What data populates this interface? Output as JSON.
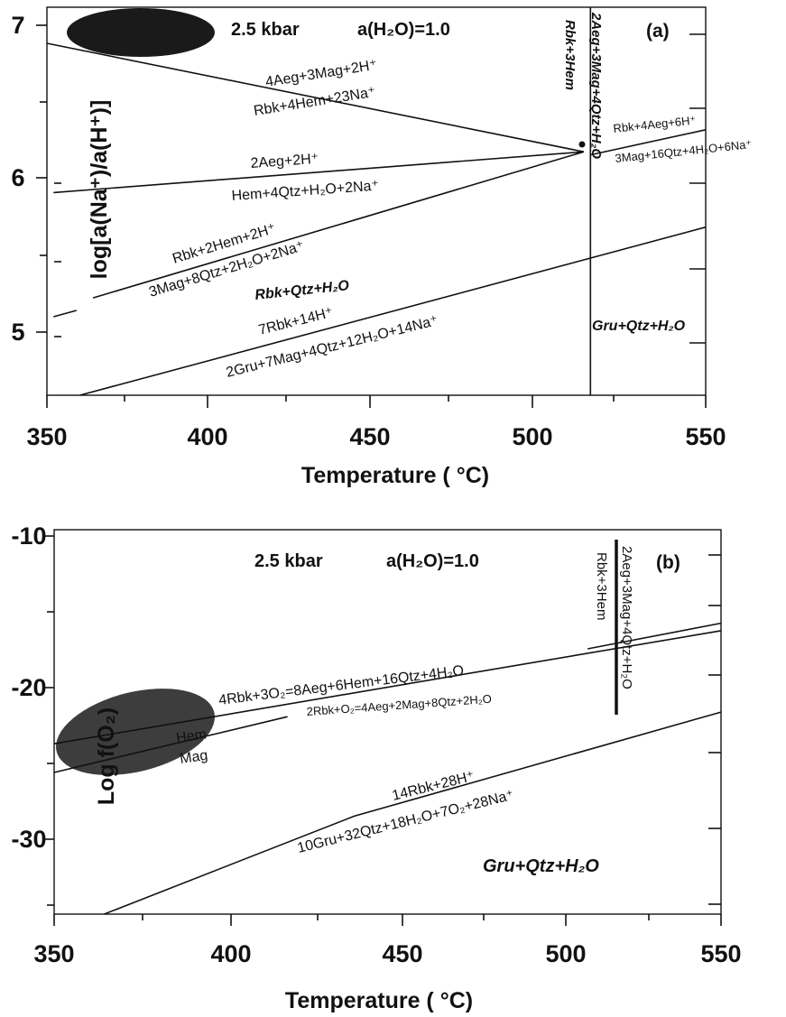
{
  "chart_data": [
    {
      "panel_label": "(a)",
      "type": "line",
      "header": {
        "pressure": "2.5 kbar",
        "water_activity": "a(H₂O)=1.0"
      },
      "xlabel": "Temperature ( °C)",
      "ylabel": "log[a(Na⁺)/a(H⁺)]",
      "xlim": [
        350,
        550
      ],
      "ylim": [
        4.63,
        7.1
      ],
      "x_ticks": [
        "350",
        "400",
        "450",
        "500",
        "550"
      ],
      "y_ticks": [
        "5",
        "6",
        "7"
      ],
      "shaded_region": {
        "center": [
          375,
          6.93
        ],
        "rx": 22,
        "ry": 0.16,
        "color": "#1a1a1a"
      },
      "series": [
        {
          "points": [
            [
              350,
              6.87
            ],
            [
              513,
              6.18
            ]
          ],
          "labels": [
            "4Aeg+3Mag+2H⁺",
            "Rbk+4Hem+23Na⁺"
          ]
        },
        {
          "points": [
            [
              352,
              5.92
            ],
            [
              513,
              6.18
            ]
          ],
          "labels": [
            "2Aeg+2H⁺",
            "Hem+4Qtz+H₂O+2Na⁺"
          ]
        },
        {
          "points": [
            [
              352,
              5.13
            ],
            [
              359,
              5.17
            ]
          ]
        },
        {
          "points": [
            [
              364,
              5.25
            ],
            [
              513,
              6.18
            ]
          ],
          "labels": [
            "Rbk+2Hem+2H⁺",
            "3Mag+8Qtz+2H₂O+2Na⁺"
          ]
        },
        {
          "points": [
            [
              360,
              4.63
            ],
            [
              550,
              5.7
            ]
          ],
          "labels": [
            "7Rbk+14H⁺",
            "2Gru+7Mag+4Qtz+12H₂O+14Na⁺"
          ]
        },
        {
          "points": [
            [
              515,
              6.16
            ],
            [
              550,
              6.32
            ]
          ],
          "labels": [
            "Rbk+4Aeg+6H⁺",
            "3Mag+16Qtz+4H₂O+6Na⁺"
          ]
        },
        {
          "points": [
            [
              515,
              4.63
            ],
            [
              515,
              7.1
            ]
          ],
          "labels": [
            "Rbk+3Hem",
            "2Aeg+3Mag+4Qtz+H₂O"
          ]
        }
      ],
      "fields": [
        "Rbk+Qtz+H₂O",
        "Gru+Qtz+H₂O"
      ]
    },
    {
      "panel_label": "(b)",
      "type": "line",
      "header": {
        "pressure": "2.5 kbar",
        "water_activity": "a(H₂O)=1.0"
      },
      "xlabel": "Temperature ( °C)",
      "ylabel": "Log f(O₂)",
      "xlim": [
        350,
        550
      ],
      "ylim": [
        -35.5,
        -10
      ],
      "x_ticks": [
        "350",
        "400",
        "450",
        "500",
        "550"
      ],
      "y_ticks": [
        "-10",
        "-20",
        "-30"
      ],
      "shaded_region": {
        "center": [
          375,
          -24.2
        ],
        "rx": 24,
        "ry": 2.6,
        "color": "#3d3d3d"
      },
      "series": [
        {
          "points": [
            [
              350,
              -24.2
            ],
            [
              550,
              -16.7
            ]
          ],
          "labels": [
            "4Rbk+3O₂=8Aeg+6Hem+16Qtz+4H₂O"
          ]
        },
        {
          "points": [
            [
              350,
              -26.1
            ],
            [
              420,
              -22.4
            ]
          ],
          "labels": [
            "Hem",
            "Mag"
          ]
        },
        {
          "points": [
            [
              510,
              -17.9
            ],
            [
              550,
              -16.2
            ]
          ],
          "labels": [
            "2Rbk+O₂=4Aeg+2Mag+8Qtz+2H₂O"
          ]
        },
        {
          "points": [
            [
              365,
              -35.5
            ],
            [
              440,
              -29.0
            ],
            [
              550,
              -22.1
            ]
          ],
          "labels": [
            "14Rbk+28H⁺",
            "10Gru+32Qtz+18H₂O+7O₂+28Na⁺"
          ]
        },
        {
          "points": [
            [
              515,
              -10.5
            ],
            [
              515,
              -22.0
            ]
          ],
          "labels": [
            "Rbk+3Hem",
            "2Aeg+3Mag+4Qtz+H₂O"
          ]
        }
      ],
      "fields": [
        "Gru+Qtz+H₂O"
      ]
    }
  ]
}
